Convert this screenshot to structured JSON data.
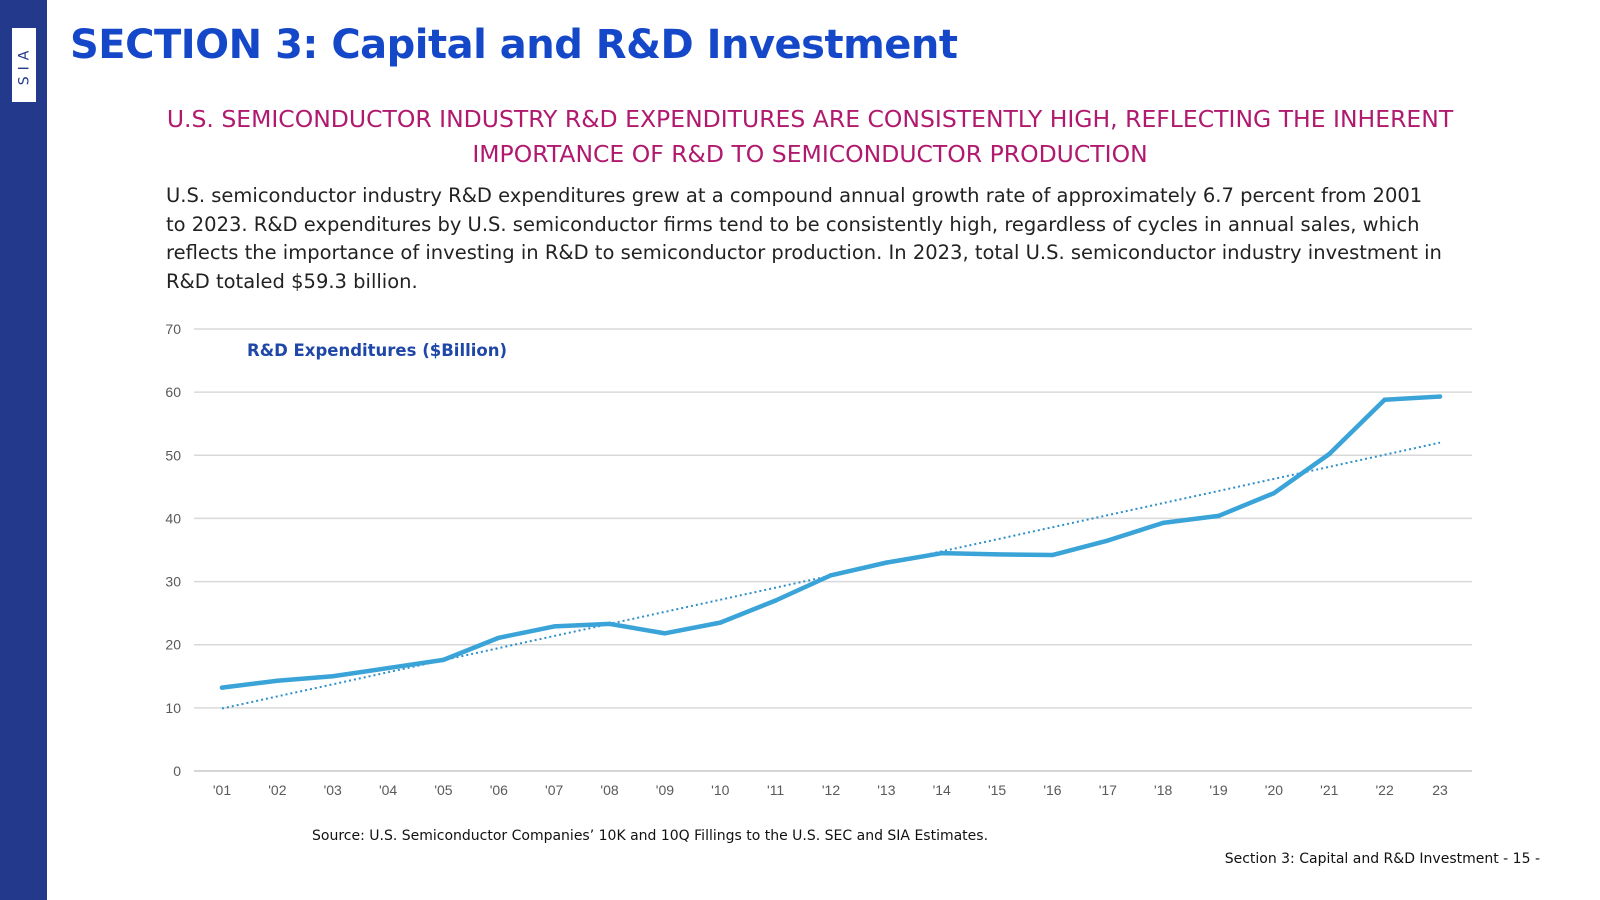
{
  "sidebar": {
    "logo": "SIA"
  },
  "page": {
    "section_title": "SECTION 3: Capital and R&D Investment",
    "headline": "U.S. SEMICONDUCTOR INDUSTRY R&D EXPENDITURES ARE CONSISTENTLY HIGH, REFLECTING THE INHERENT IMPORTANCE OF R&D TO SEMICONDUCTOR PRODUCTION",
    "body": "U.S. semiconductor industry R&D expenditures grew at a compound annual growth rate of approximately 6.7 percent from 2001 to 2023. R&D expenditures by U.S. semiconductor firms tend to be consistently high, regardless of cycles in annual sales, which reflects the importance of investing in R&D to semiconductor production. In 2023, total U.S. semiconductor industry investment in R&D totaled $59.3 billion.",
    "source": "Source: U.S. Semiconductor Companies’ 10K and 10Q Fillings to the U.S. SEC and SIA Estimates.",
    "footer": "Section 3: Capital and R&D Investment  - 15 -"
  },
  "colors": {
    "sidebar": "#233a8c",
    "title": "#1547c9",
    "headline": "#b0196e",
    "series": "#3aa3d8",
    "chart_title": "#1f47a8"
  },
  "chart_data": {
    "type": "line",
    "title": "R&D Expenditures ($Billion)",
    "categories": [
      "'01",
      "'02",
      "'03",
      "'04",
      "'05",
      "'06",
      "'07",
      "'08",
      "'09",
      "'10",
      "'11",
      "'12",
      "'13",
      "'14",
      "'15",
      "'16",
      "'17",
      "'18",
      "'19",
      "'20",
      "'21",
      "'22",
      "23"
    ],
    "series": [
      {
        "values": [
          13.2,
          14.3,
          15.0,
          16.3,
          17.6,
          21.1,
          22.9,
          23.3,
          21.8,
          23.5,
          27.0,
          31.0,
          33.0,
          34.5,
          34.3,
          34.2,
          36.5,
          39.3,
          40.4,
          44.0,
          50.2,
          58.8,
          59.3
        ]
      }
    ],
    "trendline": {
      "type": "linear",
      "style": "dotted",
      "start": 9.9,
      "end": 52.0
    },
    "ylim": [
      0,
      70
    ],
    "yticks": [
      0,
      10,
      20,
      30,
      40,
      50,
      60,
      70
    ],
    "grid": true,
    "xlabel": "",
    "ylabel": ""
  }
}
